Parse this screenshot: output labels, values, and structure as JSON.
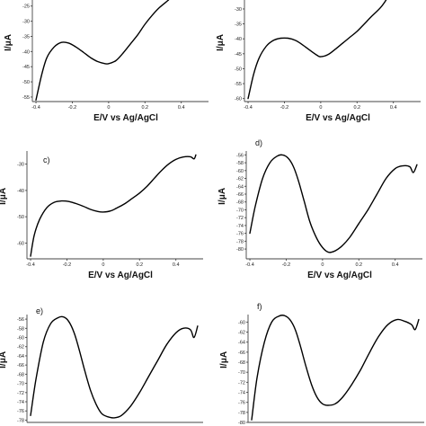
{
  "chart_data": [
    {
      "type": "line",
      "panel_label": "",
      "xlabel": "E/V vs Ag/AgCl",
      "ylabel": "I/μA",
      "xlim": [
        -0.42,
        0.55
      ],
      "ylim": [
        -56.5,
        -23
      ],
      "xticks": [
        "-0.4",
        "-0.2",
        "0",
        "0.2",
        "0.4"
      ],
      "xtick_values": [
        -0.4,
        -0.2,
        0,
        0.2,
        0.4
      ],
      "yticks": [
        "-25",
        "-30",
        "-35",
        "-40",
        "-45",
        "-50",
        "-55"
      ],
      "ytick_values": [
        -25,
        -30,
        -35,
        -40,
        -45,
        -50,
        -55
      ],
      "series": [
        {
          "x": [
            -0.4,
            -0.37,
            -0.34,
            -0.3,
            -0.26,
            -0.22,
            -0.18,
            -0.14,
            -0.1,
            -0.06,
            -0.02,
            0.0,
            0.04,
            0.08,
            0.12,
            0.16,
            0.2,
            0.24,
            0.28,
            0.33
          ],
          "y": [
            -56,
            -48,
            -42,
            -38.5,
            -37,
            -37.2,
            -38.5,
            -40.2,
            -42,
            -43.3,
            -44,
            -44,
            -43,
            -40.5,
            -37.5,
            -34.5,
            -31,
            -28,
            -25.5,
            -23
          ]
        }
      ]
    },
    {
      "type": "line",
      "panel_label": "",
      "xlabel": "E/V vs Ag/AgCl",
      "ylabel": "I/μA",
      "xlim": [
        -0.42,
        0.55
      ],
      "ylim": [
        -61,
        -27
      ],
      "xticks": [
        "-0.4",
        "-0.2",
        "0",
        "0.2",
        "0.4"
      ],
      "xtick_values": [
        -0.4,
        -0.2,
        0,
        0.2,
        0.4
      ],
      "yticks": [
        "-30",
        "-35",
        "-40",
        "-45",
        "-50",
        "-55",
        "-60"
      ],
      "ytick_values": [
        -30,
        -35,
        -40,
        -45,
        -50,
        -55,
        -60
      ],
      "series": [
        {
          "x": [
            -0.4,
            -0.37,
            -0.34,
            -0.3,
            -0.26,
            -0.22,
            -0.18,
            -0.14,
            -0.1,
            -0.06,
            -0.02,
            0.0,
            0.04,
            0.08,
            0.12,
            0.16,
            0.2,
            0.24,
            0.28,
            0.33,
            0.36
          ],
          "y": [
            -60,
            -52,
            -46.5,
            -42.5,
            -40.5,
            -39.8,
            -39.8,
            -40.5,
            -42,
            -43.8,
            -45.5,
            -46,
            -45.3,
            -43.5,
            -41.5,
            -39.5,
            -37.5,
            -35,
            -32.5,
            -29.5,
            -27
          ]
        }
      ]
    },
    {
      "type": "line",
      "panel_label": "c)",
      "xlabel": "E/V vs Ag/AgCl",
      "ylabel": "I/μA",
      "xlim": [
        -0.42,
        0.55
      ],
      "ylim": [
        -66,
        -25
      ],
      "xticks": [
        "-0.4",
        "-0.2",
        "0",
        "0.2",
        "0.4"
      ],
      "xtick_values": [
        -0.4,
        -0.2,
        0,
        0.2,
        0.4
      ],
      "yticks": [
        "-30",
        "-40",
        "-50",
        "-60"
      ],
      "ytick_values": [
        -30,
        -40,
        -50,
        -60
      ],
      "series": [
        {
          "x": [
            -0.4,
            -0.38,
            -0.35,
            -0.31,
            -0.27,
            -0.23,
            -0.19,
            -0.15,
            -0.11,
            -0.07,
            -0.03,
            0.0,
            0.04,
            0.08,
            0.12,
            0.16,
            0.2,
            0.24,
            0.28,
            0.32,
            0.36,
            0.4,
            0.44,
            0.48,
            0.5,
            0.51
          ],
          "y": [
            -65,
            -57,
            -51,
            -46.5,
            -44.5,
            -44,
            -44.2,
            -45,
            -46,
            -47.2,
            -48,
            -48.2,
            -47.8,
            -46.5,
            -45,
            -43,
            -41,
            -38.5,
            -35.5,
            -32.5,
            -30,
            -28.2,
            -27.3,
            -27.2,
            -28,
            -26.5
          ]
        }
      ]
    },
    {
      "type": "line",
      "panel_label": "d)",
      "xlabel": "E/V vs Ag/AgCl",
      "ylabel": "I/μA",
      "xlim": [
        -0.42,
        0.55
      ],
      "ylim": [
        -82.5,
        -55
      ],
      "xticks": [
        "-0.4",
        "-0.2",
        "0",
        "0.2",
        "0.4"
      ],
      "xtick_values": [
        -0.4,
        -0.2,
        0,
        0.2,
        0.4
      ],
      "yticks": [
        "-56",
        "-58",
        "-60",
        "-62",
        "-64",
        "-66",
        "-68",
        "-70",
        "-72",
        "-74",
        "-76",
        "-78",
        "-80"
      ],
      "ytick_values": [
        -56,
        -58,
        -60,
        -62,
        -64,
        -66,
        -68,
        -70,
        -72,
        -74,
        -76,
        -78,
        -80
      ],
      "series": [
        {
          "x": [
            -0.4,
            -0.37,
            -0.33,
            -0.29,
            -0.25,
            -0.22,
            -0.19,
            -0.16,
            -0.13,
            -0.1,
            -0.07,
            -0.04,
            -0.01,
            0.02,
            0.05,
            0.1,
            0.15,
            0.2,
            0.25,
            0.3,
            0.35,
            0.4,
            0.44,
            0.48,
            0.5,
            0.52
          ],
          "y": [
            -76,
            -69,
            -62,
            -58,
            -56.3,
            -56,
            -56.8,
            -59,
            -63,
            -68,
            -73,
            -76.5,
            -79,
            -80.5,
            -80.8,
            -79.5,
            -77,
            -73.5,
            -70,
            -66,
            -62,
            -59.5,
            -58.8,
            -59,
            -60.5,
            -58.5
          ]
        }
      ]
    },
    {
      "type": "line",
      "panel_label": "e)",
      "xlabel": "",
      "ylabel": "I/μA",
      "xlim": [
        -0.42,
        0.55
      ],
      "ylim": [
        -78.5,
        -55
      ],
      "xticks": [],
      "xtick_values": [],
      "yticks": [
        "-56",
        "-58",
        "-60",
        "-62",
        "-64",
        "-66",
        "-68",
        "-70",
        "-72",
        "-74",
        "-76",
        "-78"
      ],
      "ytick_values": [
        -56,
        -58,
        -60,
        -62,
        -64,
        -66,
        -68,
        -70,
        -72,
        -74,
        -76,
        -78
      ],
      "series": [
        {
          "x": [
            -0.4,
            -0.37,
            -0.33,
            -0.29,
            -0.25,
            -0.22,
            -0.19,
            -0.16,
            -0.13,
            -0.1,
            -0.07,
            -0.04,
            -0.01,
            0.02,
            0.06,
            0.1,
            0.15,
            0.2,
            0.25,
            0.3,
            0.35,
            0.4,
            0.44,
            0.48,
            0.5,
            0.52
          ],
          "y": [
            -77,
            -69,
            -61,
            -57,
            -55.7,
            -55.5,
            -56.5,
            -59,
            -63,
            -67.5,
            -71.5,
            -74.5,
            -76.5,
            -77.2,
            -77.5,
            -77,
            -75,
            -72,
            -68.5,
            -65,
            -61.5,
            -59,
            -58,
            -58.3,
            -60,
            -57.5
          ]
        }
      ]
    },
    {
      "type": "line",
      "panel_label": "f)",
      "xlabel": "",
      "ylabel": "I/μA",
      "xlim": [
        -0.42,
        0.55
      ],
      "ylim": [
        -80,
        -58.5
      ],
      "xticks": [],
      "xtick_values": [],
      "yticks": [
        "-60",
        "-62",
        "-64",
        "-66",
        "-68",
        "-70",
        "-72",
        "-74",
        "-76",
        "-78",
        "-80"
      ],
      "ytick_values": [
        -60,
        -62,
        -64,
        -66,
        -68,
        -70,
        -72,
        -74,
        -76,
        -78,
        -80
      ],
      "series": [
        {
          "x": [
            -0.4,
            -0.37,
            -0.33,
            -0.29,
            -0.25,
            -0.22,
            -0.19,
            -0.16,
            -0.13,
            -0.1,
            -0.07,
            -0.04,
            -0.01,
            0.02,
            0.06,
            0.1,
            0.15,
            0.2,
            0.25,
            0.3,
            0.35,
            0.4,
            0.44,
            0.48,
            0.5,
            0.52
          ],
          "y": [
            -79.5,
            -71,
            -64,
            -60,
            -58.8,
            -58.7,
            -59.5,
            -61.5,
            -65,
            -69,
            -72.5,
            -75,
            -76.3,
            -76.6,
            -76.3,
            -75,
            -72.5,
            -69.5,
            -66,
            -62.8,
            -60.5,
            -59.5,
            -59.8,
            -60.5,
            -61.5,
            -59.5
          ]
        }
      ]
    }
  ]
}
